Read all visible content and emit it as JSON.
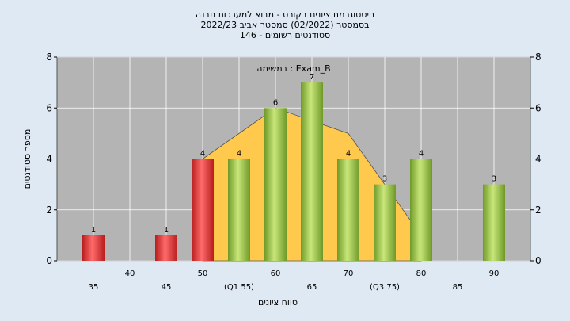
{
  "chart_data": {
    "type": "bar",
    "title": [
      "היסטוגרמת ציונים בקורס - מבוא למערכות תבנה",
      "בסמסטר  (02/2022)  סמסטר אביב 2022/23",
      "סטודנטים רשומים - 146"
    ],
    "annotation": "במשימה : Exam_B",
    "xlabel": "טווח ציונים",
    "ylabel": "מספר סטודנטים",
    "ylim": [
      0,
      8
    ],
    "yticks": [
      0,
      2,
      4,
      6,
      8
    ],
    "x_tick_labels": [
      "35",
      "40",
      "45",
      "50",
      "(Q1 55)",
      "60",
      "65",
      "70",
      "(Q3 75)",
      "80",
      "85",
      "90"
    ],
    "bars": [
      {
        "x": 35,
        "value": 1,
        "color": "#e03030"
      },
      {
        "x": 45,
        "value": 1,
        "color": "#e03030"
      },
      {
        "x": 50,
        "value": 4,
        "color": "#e03030"
      },
      {
        "x": 55,
        "value": 4,
        "color": "#9cc84a"
      },
      {
        "x": 60,
        "value": 6,
        "color": "#9cc84a"
      },
      {
        "x": 65,
        "value": 7,
        "color": "#9cc84a"
      },
      {
        "x": 70,
        "value": 4,
        "color": "#9cc84a"
      },
      {
        "x": 75,
        "value": 3,
        "color": "#9cc84a"
      },
      {
        "x": 80,
        "value": 4,
        "color": "#9cc84a"
      },
      {
        "x": 90,
        "value": 3,
        "color": "#9cc84a"
      }
    ],
    "area": {
      "x": [
        50,
        60,
        70,
        80
      ],
      "y": [
        4,
        6,
        5,
        1
      ],
      "color": "#ffc94d"
    },
    "grid": true,
    "plot_background": "#b4b4b4"
  }
}
